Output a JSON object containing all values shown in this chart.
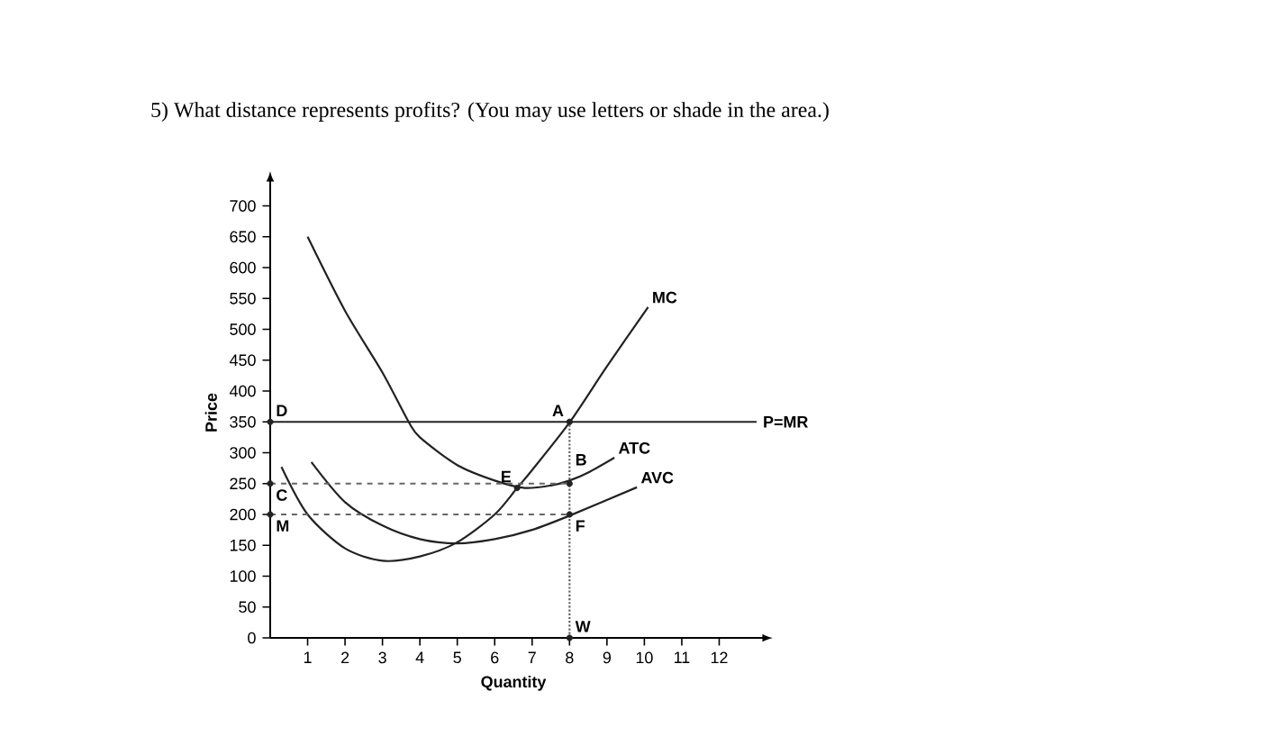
{
  "chart_data": {
    "type": "line",
    "title": "5) What distance represents profits? (You may use letters or shade in the area.)",
    "xlabel": "Quantity",
    "ylabel": "Price",
    "xlim": [
      0,
      13
    ],
    "ylim": [
      0,
      730
    ],
    "xticks": [
      1,
      2,
      3,
      4,
      5,
      6,
      7,
      8,
      9,
      10,
      11,
      12
    ],
    "yticks": [
      0,
      50,
      100,
      150,
      200,
      250,
      300,
      350,
      400,
      450,
      500,
      550,
      600,
      650,
      700
    ],
    "legend": false,
    "marker": "none",
    "line_style": "solid",
    "series": [
      {
        "name": "MC",
        "color": "#222222",
        "x": [
          0.3,
          1,
          2,
          3,
          4,
          5,
          6,
          6.6,
          7,
          8,
          9,
          10.1
        ],
        "values": [
          277,
          200,
          145,
          125,
          132,
          155,
          200,
          243,
          272,
          349,
          440,
          536
        ]
      },
      {
        "name": "ATC",
        "color": "#222222",
        "x": [
          1,
          2,
          3,
          3.7,
          4,
          5,
          6,
          6.8,
          7.5,
          8,
          8.5,
          9.2
        ],
        "values": [
          650,
          530,
          430,
          350,
          325,
          280,
          255,
          243,
          247,
          255,
          268,
          292
        ]
      },
      {
        "name": "AVC",
        "color": "#222222",
        "x": [
          1.1,
          2,
          3,
          4,
          5,
          6,
          7,
          8,
          9.8
        ],
        "values": [
          285,
          220,
          182,
          160,
          153,
          160,
          175,
          198,
          244
        ]
      },
      {
        "type": "line",
        "line_style": "dashed",
        "color": "#666666",
        "x": [
          0,
          8
        ],
        "values": [
          250,
          250
        ]
      },
      {
        "type": "line",
        "line_style": "dashed",
        "color": "#666666",
        "x": [
          0,
          8
        ],
        "values": [
          200,
          200
        ]
      },
      {
        "type": "line",
        "line_style": "dotted",
        "color": "#666666",
        "x": [
          8,
          8
        ],
        "values": [
          0,
          350
        ]
      },
      {
        "type": "scatter",
        "marker": "circle",
        "color": "#222222",
        "x": [
          0,
          0,
          0,
          8,
          8,
          8,
          8,
          6.6
        ],
        "values": [
          350,
          250,
          200,
          350,
          250,
          200,
          0,
          243
        ]
      }
    ],
    "ref_lines": [
      {
        "axis": "y",
        "value": 350,
        "label": "P=MR",
        "color": "#222222"
      }
    ],
    "annotations": [
      {
        "text": "A",
        "x": 8,
        "y": 350
      },
      {
        "text": "B",
        "x": 8,
        "y": 250
      },
      {
        "text": "C",
        "x": 0,
        "y": 250
      },
      {
        "text": "D",
        "x": 0,
        "y": 350
      },
      {
        "text": "E",
        "x": 6.6,
        "y": 243
      },
      {
        "text": "F",
        "x": 8,
        "y": 200
      },
      {
        "text": "M",
        "x": 0,
        "y": 200
      },
      {
        "text": "W",
        "x": 8,
        "y": 0
      }
    ]
  }
}
